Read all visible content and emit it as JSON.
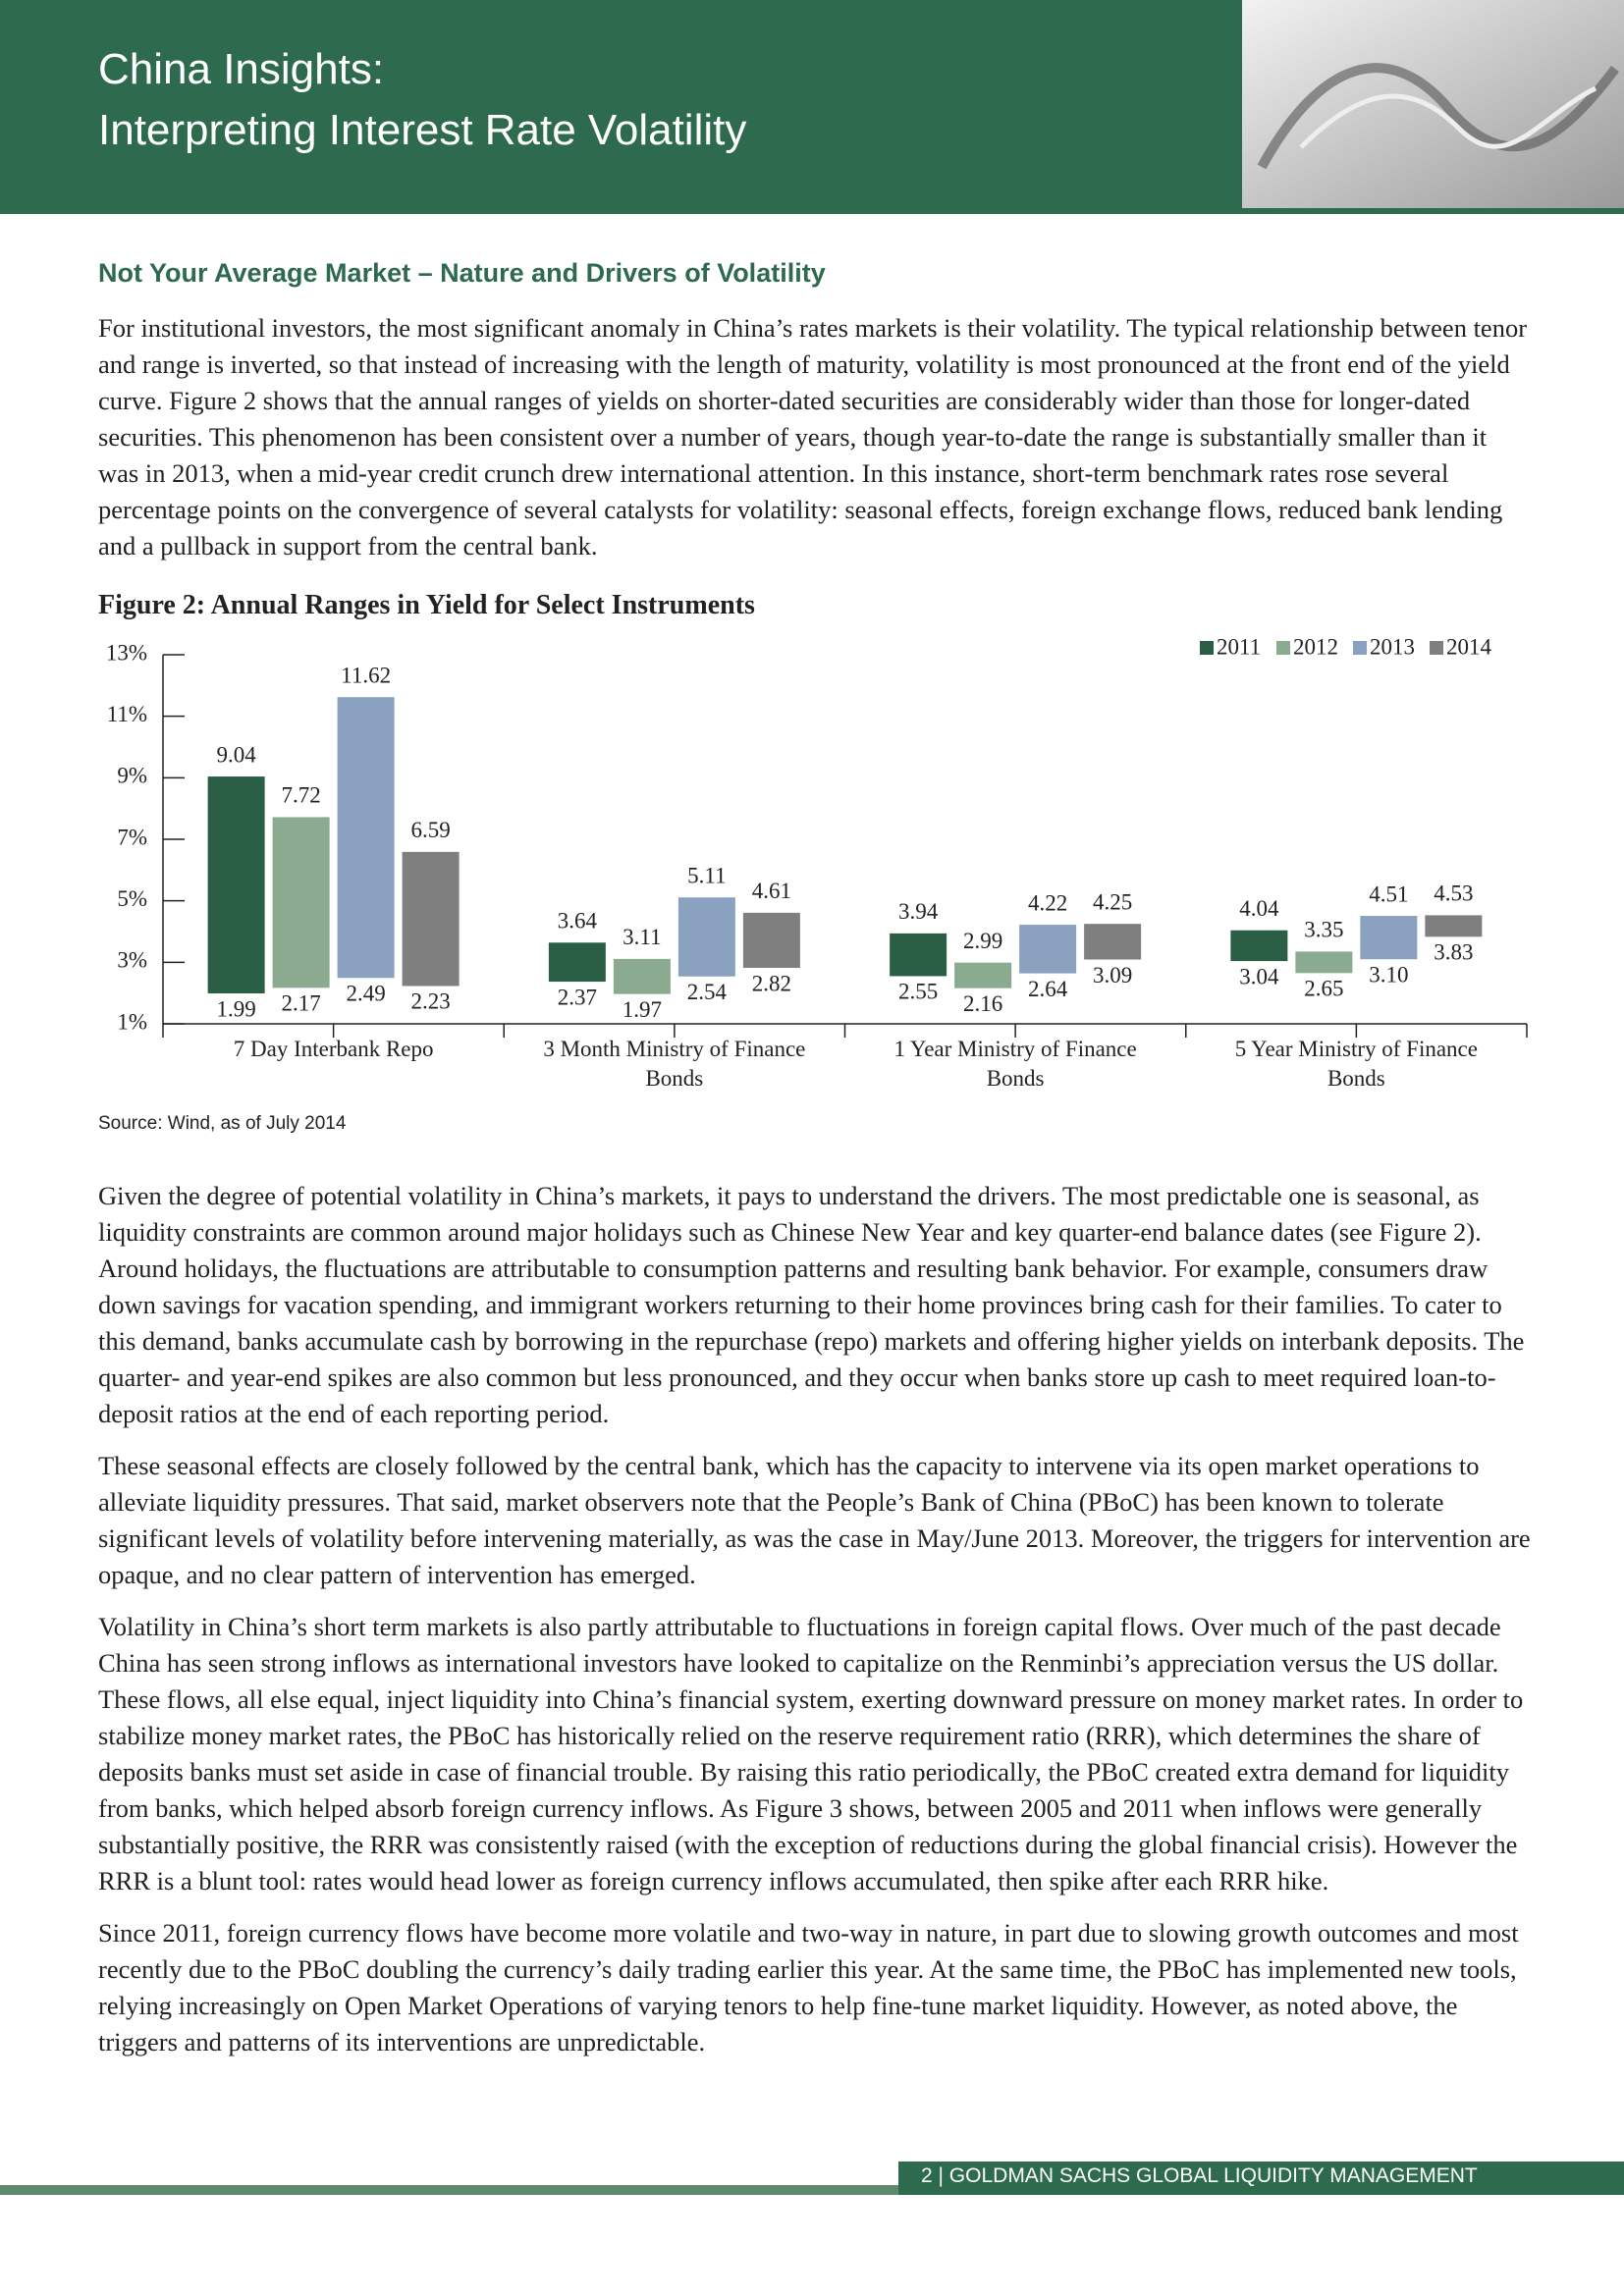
{
  "header": {
    "title": "China Insights:",
    "subtitle": "Interpreting Interest Rate Volatility"
  },
  "section_title": "Not Your Average Market – Nature and Drivers of Volatility",
  "intro": "For institutional investors, the most significant anomaly in China’s rates markets is their volatility. The typical relationship between tenor and range is inverted, so that instead of increasing with the length of maturity, volatility is most pronounced at the front end of the yield curve. Figure 2 shows that the annual ranges of yields on shorter-dated securities are considerably wider than those for longer-dated securities. This phenomenon has been consistent over a number of years, though year-to-date the range is substantially smaller than it was in 2013, when a mid-year credit crunch drew international attention. In this instance, short-term benchmark rates rose several percentage points on the convergence of several catalysts for volatility: seasonal effects, foreign exchange flows, reduced bank lending and a pullback in support from the central bank.",
  "chart_data": {
    "type": "range_bar",
    "title": "Figure 2: Annual Ranges in Yield for Select Instruments",
    "source": "Source: Wind, as of July 2014",
    "categories": [
      "7 Day Interbank Repo",
      "3 Month Ministry of Finance Bonds",
      "1 Year Ministry of Finance Bonds",
      "5 Year Ministry of Finance Bonds"
    ],
    "series": [
      {
        "name": "2011",
        "color": "#2a5e45",
        "low": [
          1.99,
          2.37,
          2.55,
          3.04
        ],
        "high": [
          9.04,
          3.64,
          3.94,
          4.04
        ]
      },
      {
        "name": "2012",
        "color": "#8aab8f",
        "low": [
          2.17,
          1.97,
          2.16,
          2.65
        ],
        "high": [
          7.72,
          3.11,
          2.99,
          3.35
        ]
      },
      {
        "name": "2013",
        "color": "#8aa2c0",
        "low": [
          2.49,
          2.54,
          2.64,
          3.1
        ],
        "low_labels": [
          "2.49",
          "2.54",
          "2.64",
          "3.10"
        ],
        "high": [
          11.62,
          5.11,
          4.22,
          4.51
        ]
      },
      {
        "name": "2014",
        "color": "#7f7f7f",
        "low": [
          2.23,
          2.82,
          3.09,
          3.83
        ],
        "high": [
          6.59,
          4.61,
          4.25,
          4.53
        ]
      }
    ],
    "ylim": [
      1,
      13
    ],
    "yticks": [
      {
        "value": 1,
        "label": "1%"
      },
      {
        "value": 3,
        "label": "3%"
      },
      {
        "value": 5,
        "label": "5%"
      },
      {
        "value": 7,
        "label": "7%"
      },
      {
        "value": 9,
        "label": "9%"
      },
      {
        "value": 11,
        "label": "11%"
      },
      {
        "value": 13,
        "label": "13%"
      }
    ],
    "legend": "top-right"
  },
  "paragraphs": [
    "Given the degree of potential volatility in China’s markets, it pays to understand the drivers. The most predictable one is seasonal, as liquidity constraints are common around major holidays such as Chinese New Year and key quarter-end balance dates (see Figure 2). Around holidays, the fluctuations are attributable to consumption patterns and resulting bank behavior. For example, consumers draw down savings for vacation spending, and immigrant workers returning to their home provinces bring cash for their families. To cater to this demand, banks accumulate cash by borrowing in the repurchase (repo) markets and offering higher yields on interbank deposits. The quarter- and year-end spikes are also common but less pronounced, and they occur when banks store up cash to meet required loan-to-deposit ratios at the end of each reporting period.",
    "These seasonal effects are closely followed by the central bank, which has the capacity to intervene via its open market operations to alleviate liquidity pressures. That said, market observers note that the People’s Bank of China (PBoC) has been known to tolerate significant levels of volatility before intervening materially, as was the case in May/June 2013. Moreover, the triggers for intervention are opaque, and no clear pattern of intervention has emerged.",
    "Volatility in China’s short term markets is also partly attributable to fluctuations in foreign capital flows. Over much of the past decade China has seen strong inflows as international investors have looked to capitalize on the Renminbi’s appreciation versus the US dollar. These flows, all else equal, inject liquidity into China’s financial system, exerting downward pressure on money market rates. In order to stabilize money market rates, the PBoC has historically relied on the reserve requirement ratio (RRR), which determines the share of deposits banks must set aside in case of financial trouble. By raising this ratio periodically, the PBoC created extra demand for liquidity from banks, which helped absorb foreign currency inflows. As Figure 3 shows, between 2005 and 2011 when inflows were generally substantially positive, the RRR was consistently raised (with the exception of reductions during the global financial crisis). However the RRR is a blunt tool: rates would head lower as foreign currency inflows accumulated, then spike after each RRR hike.",
    "Since 2011, foreign currency flows have become more volatile and two-way in nature, in part due to slowing growth outcomes and most recently due to the PBoC doubling the currency’s daily trading earlier this year. At the same time, the PBoC has implemented new tools, relying increasingly on Open Market Operations of varying tenors to help fine-tune market liquidity. However, as noted above, the triggers and patterns of its interventions are unpredictable."
  ],
  "footer": "2 | GOLDMAN SACHS GLOBAL LIQUIDITY MANAGEMENT"
}
